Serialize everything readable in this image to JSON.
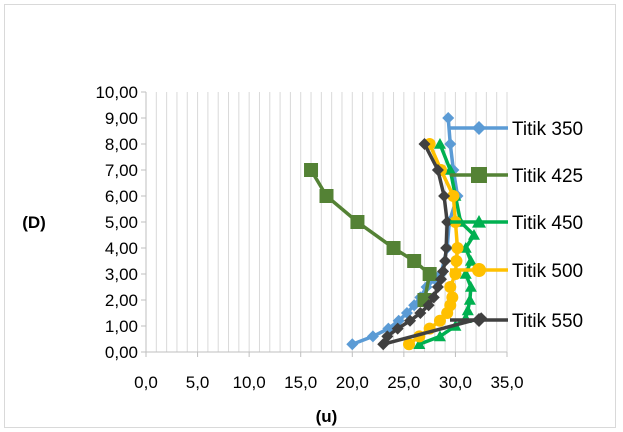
{
  "chart_data": {
    "type": "scatter",
    "title": "",
    "xlabel": "(u)",
    "ylabel": "(D)",
    "xlim": [
      0,
      35
    ],
    "ylim": [
      0,
      10
    ],
    "x_ticks": [
      "0,0",
      "5,0",
      "10,0",
      "15,0",
      "20,0",
      "25,0",
      "30,0",
      "35,0"
    ],
    "y_ticks": [
      "0,00",
      "1,00",
      "2,00",
      "3,00",
      "4,00",
      "5,00",
      "6,00",
      "7,00",
      "8,00",
      "9,00",
      "10,00"
    ],
    "grid": "vertical minor gridlines",
    "legend_position": "right",
    "series": [
      {
        "name": "Titik 350",
        "color": "#5b9bd5",
        "marker": "diamond",
        "points": [
          [
            20.0,
            0.3
          ],
          [
            22.0,
            0.6
          ],
          [
            23.5,
            0.9
          ],
          [
            24.5,
            1.2
          ],
          [
            25.3,
            1.5
          ],
          [
            26.0,
            1.8
          ],
          [
            26.6,
            2.1
          ],
          [
            27.2,
            2.5
          ],
          [
            28.0,
            2.8
          ],
          [
            28.6,
            3.0
          ],
          [
            29.2,
            4.0
          ],
          [
            29.4,
            5.0
          ],
          [
            30.2,
            6.0
          ],
          [
            29.8,
            7.0
          ],
          [
            29.5,
            8.0
          ],
          [
            29.3,
            9.0
          ]
        ]
      },
      {
        "name": "Titik 425",
        "color": "#548235",
        "marker": "square",
        "points": [
          [
            27.0,
            2.0
          ],
          [
            27.5,
            3.0
          ],
          [
            26.0,
            3.5
          ],
          [
            24.0,
            4.0
          ],
          [
            20.5,
            5.0
          ],
          [
            17.5,
            6.0
          ],
          [
            16.0,
            7.0
          ]
        ]
      },
      {
        "name": "Titik 450",
        "color": "#00b050",
        "marker": "triangle",
        "points": [
          [
            26.5,
            0.3
          ],
          [
            28.5,
            0.6
          ],
          [
            30.0,
            1.0
          ],
          [
            31.0,
            1.3
          ],
          [
            31.2,
            1.6
          ],
          [
            31.4,
            2.0
          ],
          [
            31.5,
            2.5
          ],
          [
            31.0,
            3.0
          ],
          [
            31.5,
            3.5
          ],
          [
            31.0,
            4.0
          ],
          [
            31.8,
            4.5
          ],
          [
            30.5,
            5.0
          ],
          [
            30.0,
            6.0
          ],
          [
            29.5,
            7.0
          ],
          [
            28.5,
            8.0
          ]
        ]
      },
      {
        "name": "Titik 500",
        "color": "#ffc000",
        "marker": "circle",
        "points": [
          [
            25.5,
            0.3
          ],
          [
            26.5,
            0.6
          ],
          [
            27.5,
            0.9
          ],
          [
            28.5,
            1.2
          ],
          [
            29.2,
            1.5
          ],
          [
            29.5,
            1.8
          ],
          [
            29.7,
            2.1
          ],
          [
            29.5,
            2.5
          ],
          [
            30.0,
            3.0
          ],
          [
            30.1,
            3.5
          ],
          [
            30.2,
            4.0
          ],
          [
            30.0,
            5.0
          ],
          [
            29.8,
            6.0
          ],
          [
            28.6,
            7.0
          ],
          [
            27.5,
            8.0
          ]
        ]
      },
      {
        "name": "Titik 550",
        "color": "#404040",
        "marker": "diamond",
        "points": [
          [
            32.5,
            1.3
          ],
          [
            23.0,
            0.3
          ],
          [
            23.4,
            0.6
          ],
          [
            24.4,
            0.9
          ],
          [
            25.6,
            1.2
          ],
          [
            26.6,
            1.5
          ],
          [
            27.4,
            1.8
          ],
          [
            27.9,
            2.1
          ],
          [
            28.3,
            2.5
          ],
          [
            28.6,
            2.8
          ],
          [
            28.8,
            3.1
          ],
          [
            29.0,
            3.5
          ],
          [
            29.1,
            4.0
          ],
          [
            29.2,
            5.0
          ],
          [
            28.9,
            6.0
          ],
          [
            28.3,
            7.0
          ],
          [
            27.0,
            8.0
          ]
        ]
      }
    ]
  }
}
